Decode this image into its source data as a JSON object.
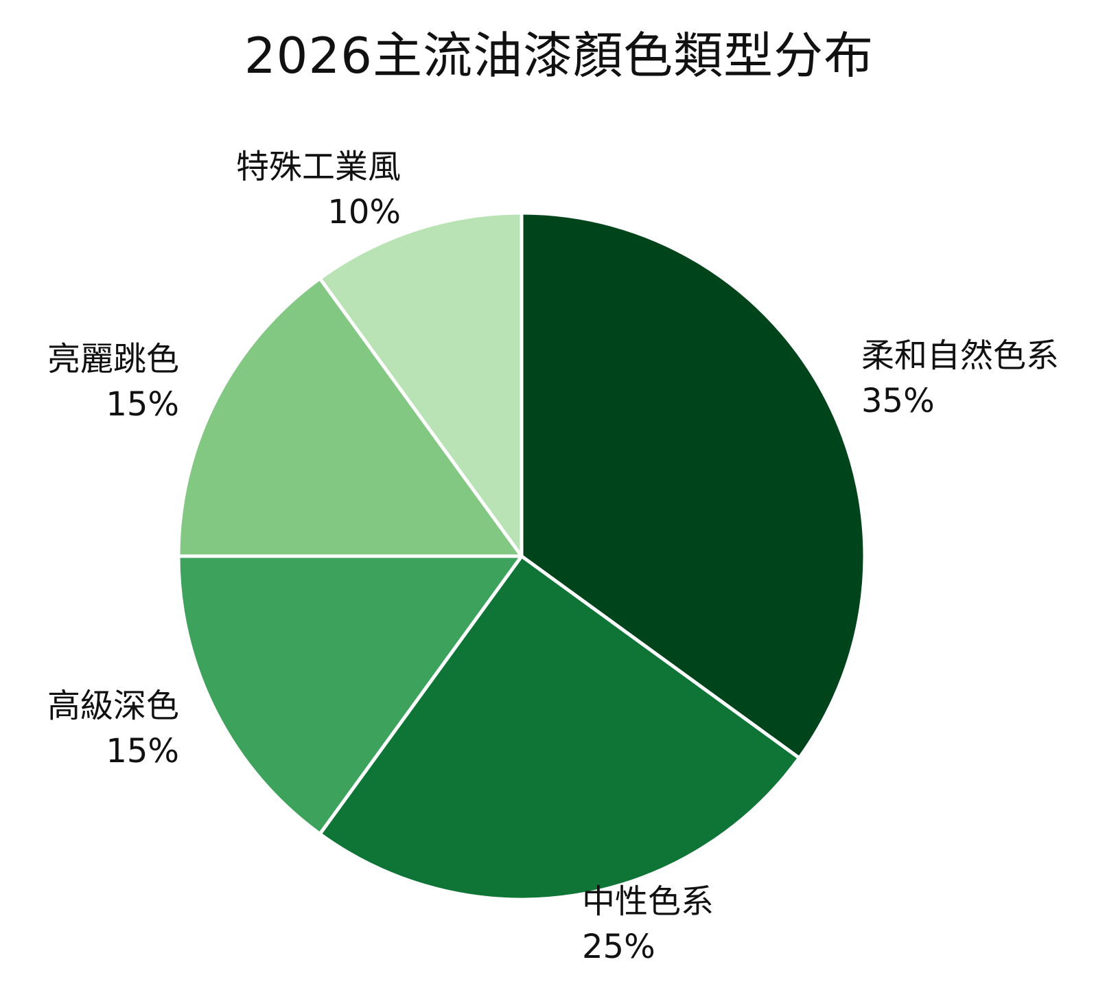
{
  "chart_data": {
    "type": "pie",
    "title": "2026主流油漆顏色類型分布",
    "slices": [
      {
        "label": "柔和自然色系",
        "value": 35,
        "value_label": "35%",
        "color": "#00441b"
      },
      {
        "label": "中性色系",
        "value": 25,
        "value_label": "25%",
        "color": "#0f7537"
      },
      {
        "label": "高級深色",
        "value": 15,
        "value_label": "15%",
        "color": "#3da25b"
      },
      {
        "label": "亮麗跳色",
        "value": 15,
        "value_label": "15%",
        "color": "#82c883"
      },
      {
        "label": "特殊工業風",
        "value": 10,
        "value_label": "10%",
        "color": "#b9e3b4"
      }
    ],
    "start_angle_deg": 0,
    "direction": "clockwise",
    "slice_border_color": "#ffffff"
  }
}
